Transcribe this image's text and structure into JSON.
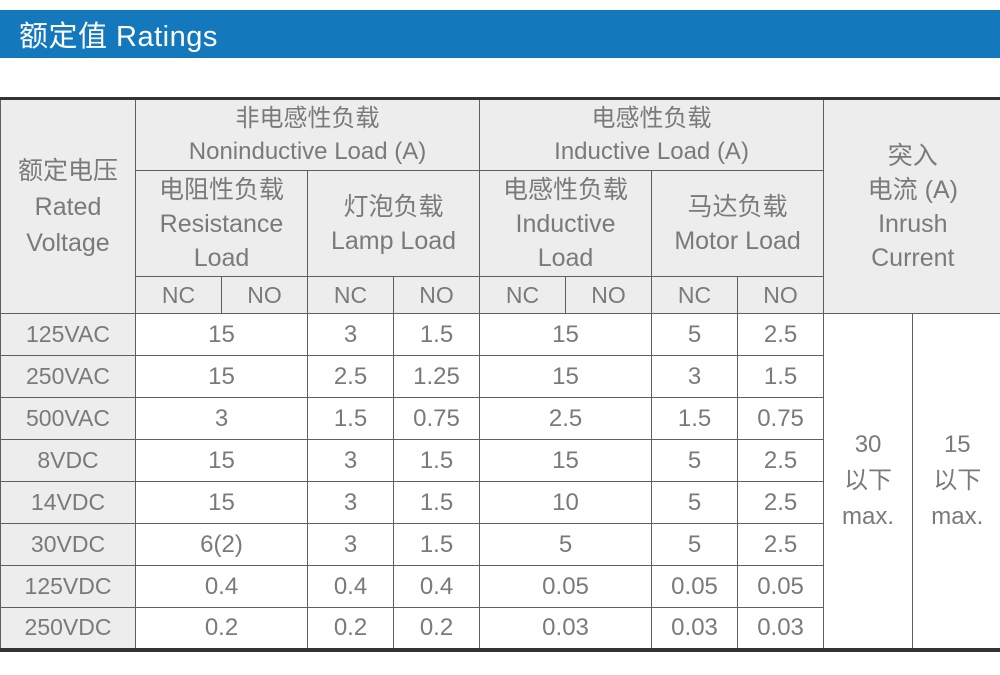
{
  "title_bar": {
    "title": "额定值 Ratings",
    "bg_color": "#1478bd"
  },
  "colors": {
    "accent_blue": "#1478bd",
    "header_bg": "#ededed",
    "text_gray": "#7a7a7a",
    "border_thin": "#5f5f5f",
    "border_thick": "#333333"
  },
  "table": {
    "rated_voltage_header": {
      "zh": "额定电压",
      "en_line1": "Rated",
      "en_line2": "Voltage"
    },
    "group_headers": {
      "noninductive": {
        "zh": "非电感性负载",
        "en": "Noninductive Load (A)"
      },
      "inductive": {
        "zh": "电感性负载",
        "en": "Inductive Load (A)"
      }
    },
    "sub_headers": {
      "resistance": {
        "zh": "电阻性负载",
        "en_line1": "Resistance",
        "en_line2": "Load"
      },
      "lamp": {
        "zh": "灯泡负载",
        "en": "Lamp Load"
      },
      "inductive": {
        "zh": "电感性负载",
        "en_line1": "Inductive",
        "en_line2": "Load"
      },
      "motor": {
        "zh": "马达负载",
        "en": "Motor Load"
      }
    },
    "contact_headers": [
      "NC",
      "NO",
      "NC",
      "NO",
      "NC",
      "NO",
      "NC",
      "NO"
    ],
    "inrush_header": {
      "zh_line1": "突入",
      "zh_line2": "电流 (A)",
      "en_line1": "Inrush",
      "en_line2": "Current"
    },
    "rows": [
      {
        "voltage": "125VAC",
        "resistance": "15",
        "lamp_nc": "3",
        "lamp_no": "1.5",
        "inductive": "15",
        "motor_nc": "5",
        "motor_no": "2.5"
      },
      {
        "voltage": "250VAC",
        "resistance": "15",
        "lamp_nc": "2.5",
        "lamp_no": "1.25",
        "inductive": "15",
        "motor_nc": "3",
        "motor_no": "1.5"
      },
      {
        "voltage": "500VAC",
        "resistance": "3",
        "lamp_nc": "1.5",
        "lamp_no": "0.75",
        "inductive": "2.5",
        "motor_nc": "1.5",
        "motor_no": "0.75"
      },
      {
        "voltage": "8VDC",
        "resistance": "15",
        "lamp_nc": "3",
        "lamp_no": "1.5",
        "inductive": "15",
        "motor_nc": "5",
        "motor_no": "2.5"
      },
      {
        "voltage": "14VDC",
        "resistance": "15",
        "lamp_nc": "3",
        "lamp_no": "1.5",
        "inductive": "10",
        "motor_nc": "5",
        "motor_no": "2.5"
      },
      {
        "voltage": "30VDC",
        "resistance": "6(2)",
        "lamp_nc": "3",
        "lamp_no": "1.5",
        "inductive": "5",
        "motor_nc": "5",
        "motor_no": "2.5"
      },
      {
        "voltage": "125VDC",
        "resistance": "0.4",
        "lamp_nc": "0.4",
        "lamp_no": "0.4",
        "inductive": "0.05",
        "motor_nc": "0.05",
        "motor_no": "0.05"
      },
      {
        "voltage": "250VDC",
        "resistance": "0.2",
        "lamp_nc": "0.2",
        "lamp_no": "0.2",
        "inductive": "0.03",
        "motor_nc": "0.03",
        "motor_no": "0.03"
      }
    ],
    "inrush_values": [
      {
        "value": "30",
        "qualifier_zh": "以下",
        "qualifier_en": "max."
      },
      {
        "value": "15",
        "qualifier_zh": "以下",
        "qualifier_en": "max."
      }
    ]
  }
}
